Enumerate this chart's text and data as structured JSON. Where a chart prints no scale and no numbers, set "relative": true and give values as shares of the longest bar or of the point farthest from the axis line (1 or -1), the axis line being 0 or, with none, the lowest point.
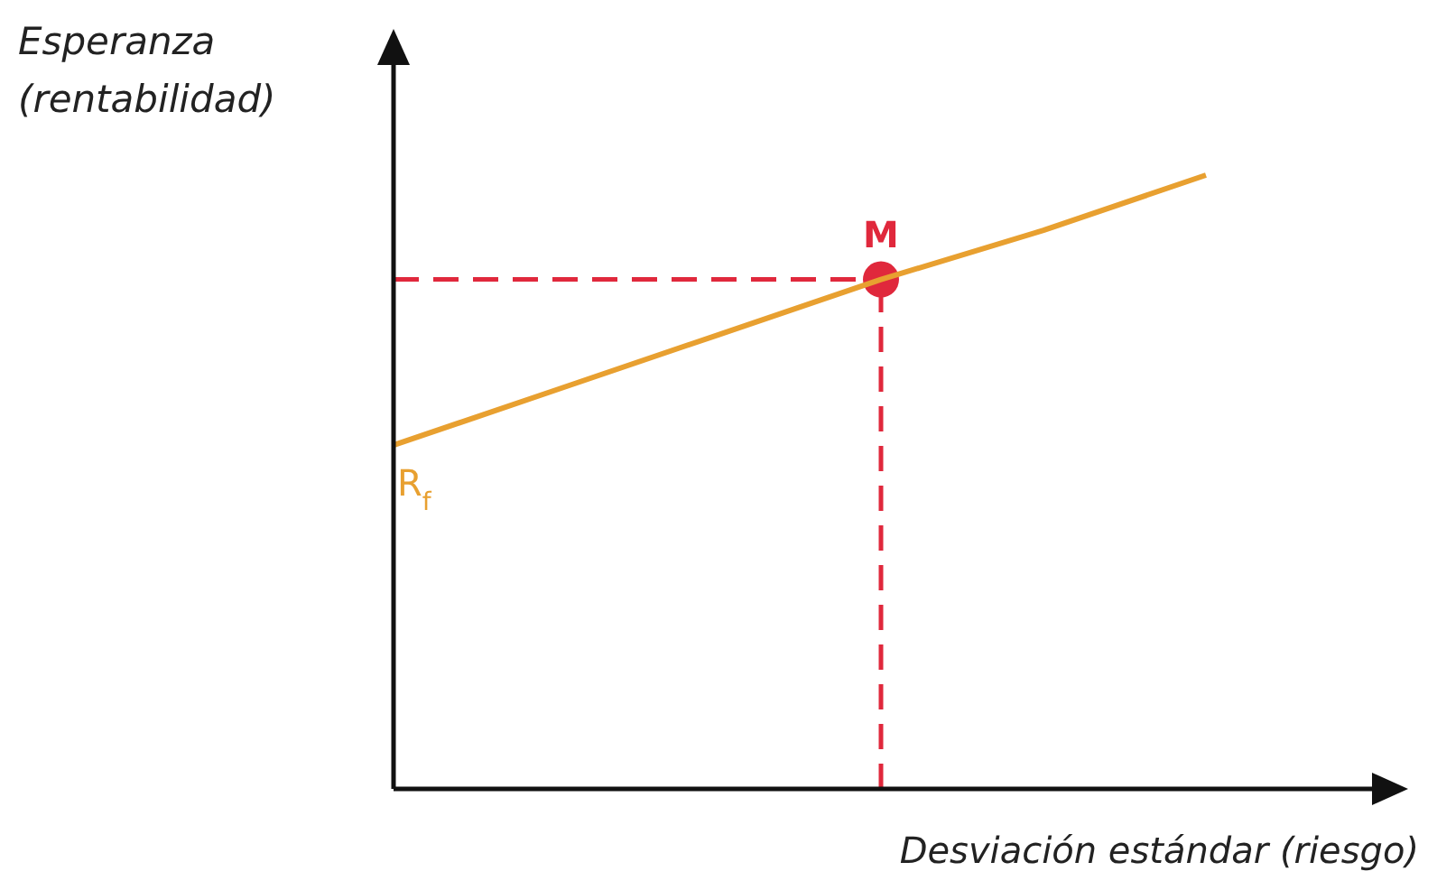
{
  "chart_data": {
    "type": "line",
    "relative": true,
    "ylabel": "Esperanza\n(rentabilidad)",
    "xlabel": "Desviación estándar (riesgo)",
    "categories": [
      null,
      null,
      null,
      null,
      null,
      null
    ],
    "series": [
      {
        "name": "R$_{f}$",
        "color": "#e8a030",
        "values": [
          0.56,
          0.65,
          0.74,
          0.83,
          0.91,
          1
        ]
      }
    ],
    "annotations": [
      {
        "text": "M",
        "y": 0.83
      }
    ],
    "line_style": "solid"
  }
}
